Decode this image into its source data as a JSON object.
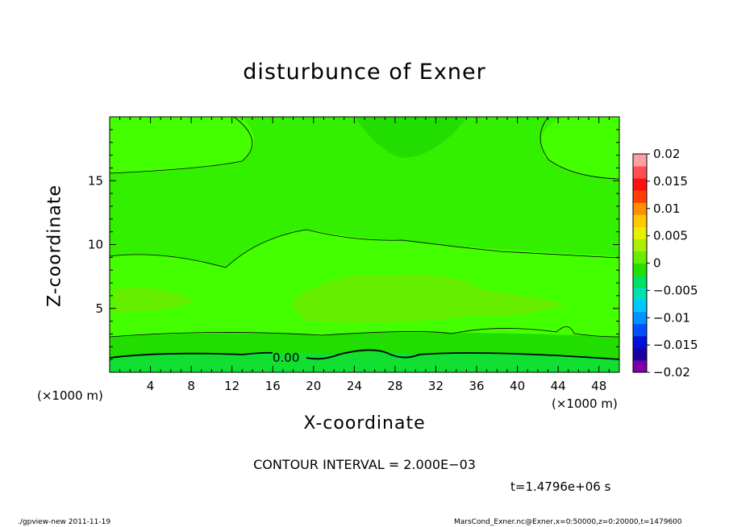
{
  "chart_data": {
    "type": "heatmap",
    "title": "disturbunce of Exner",
    "xlabel": "X-coordinate",
    "ylabel": "Z-coordinate",
    "x_unit_label": "(×1000 m)",
    "xlim": [
      0,
      50
    ],
    "ylim": [
      0,
      20
    ],
    "x_ticks": [
      "4",
      "8",
      "12",
      "16",
      "20",
      "24",
      "28",
      "32",
      "36",
      "40",
      "44",
      "48"
    ],
    "y_ticks": [
      "5",
      "10",
      "15"
    ],
    "colorbar_ticks": [
      "0.02",
      "0.015",
      "0.01",
      "0.005",
      "0",
      "−0.005",
      "−0.01",
      "−0.015",
      "−0.02"
    ],
    "colorbar_range": [
      -0.02,
      0.02
    ],
    "contour_label": "0.00",
    "contour_interval_text": "CONTOUR INTERVAL = 2.000E−03",
    "time_text": "t=1.4796e+06 s",
    "colors": {
      "bright_green": "#44ff00",
      "mid_green": "#33f000",
      "dark_green": "#22dd00",
      "yellow_green": "#66ee00",
      "lowest_green": "#11e033"
    },
    "colorbar_colors": [
      "#7a00a8",
      "#1a00a0",
      "#0010d8",
      "#0050ff",
      "#0090ff",
      "#00c8ff",
      "#00e0b0",
      "#00e060",
      "#22e000",
      "#66ee00",
      "#aaf000",
      "#e8f000",
      "#ffc800",
      "#ff9000",
      "#ff4000",
      "#ff1010",
      "#ff5050",
      "#ffa0a0"
    ]
  },
  "footer": {
    "left": "./gpview-new   2011-11-19",
    "right": "MarsCond_Exner.nc@Exner,x=0:50000,z=0:20000,t=1479600"
  }
}
